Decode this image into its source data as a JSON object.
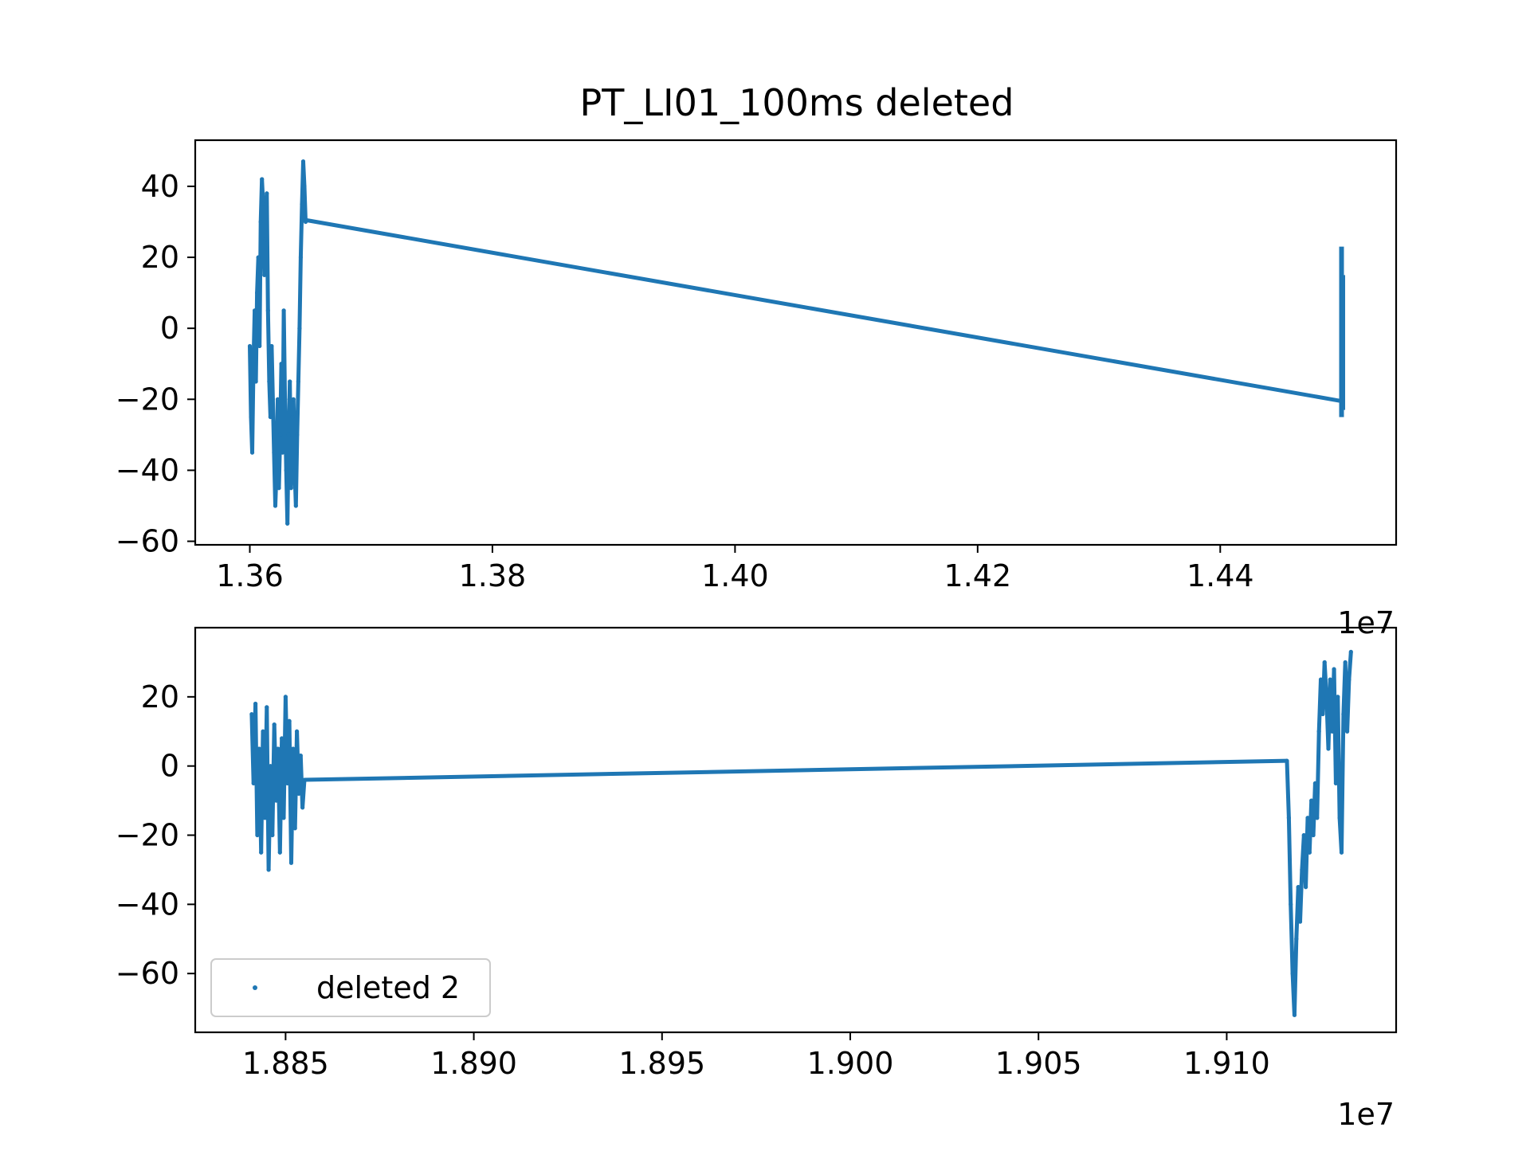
{
  "chart_data": [
    {
      "type": "scatter",
      "title": "PT_LI01_100ms deleted",
      "xlabel": "",
      "ylabel": "",
      "x_offset_label": "1e7",
      "xlim": [
        1.3555,
        1.4545
      ],
      "ylim": [
        -61,
        53
      ],
      "xticks": [
        1.36,
        1.38,
        1.4,
        1.42,
        1.44
      ],
      "xtick_labels": [
        "1.36",
        "1.38",
        "1.40",
        "1.42",
        "1.44"
      ],
      "yticks": [
        -60,
        -40,
        -20,
        0,
        20,
        40
      ],
      "ytick_labels": [
        "−60",
        "−40",
        "−20",
        "0",
        "20",
        "40"
      ],
      "grid": false,
      "marker_color": "#1f77b4",
      "series": [
        {
          "name": "",
          "points": [
            [
              1.36,
              -5
            ],
            [
              1.3601,
              -25
            ],
            [
              1.3602,
              -35
            ],
            [
              1.3603,
              -10
            ],
            [
              1.3604,
              5
            ],
            [
              1.3605,
              -15
            ],
            [
              1.3606,
              10
            ],
            [
              1.3607,
              20
            ],
            [
              1.3608,
              -5
            ],
            [
              1.3609,
              30
            ],
            [
              1.361,
              42
            ],
            [
              1.3611,
              35
            ],
            [
              1.3612,
              15
            ],
            [
              1.3613,
              25
            ],
            [
              1.3614,
              38
            ],
            [
              1.3615,
              5
            ],
            [
              1.3616,
              -15
            ],
            [
              1.3617,
              -25
            ],
            [
              1.3618,
              -5
            ],
            [
              1.3619,
              -20
            ],
            [
              1.362,
              -35
            ],
            [
              1.3621,
              -50
            ],
            [
              1.3622,
              -40
            ],
            [
              1.3623,
              -20
            ],
            [
              1.3624,
              -45
            ],
            [
              1.3625,
              -30
            ],
            [
              1.3626,
              -10
            ],
            [
              1.3627,
              -35
            ],
            [
              1.3628,
              5
            ],
            [
              1.3629,
              -20
            ],
            [
              1.363,
              -40
            ],
            [
              1.3631,
              -55
            ],
            [
              1.3632,
              -30
            ],
            [
              1.3633,
              -15
            ],
            [
              1.3634,
              -45
            ],
            [
              1.3635,
              -25
            ],
            [
              1.3636,
              -20
            ],
            [
              1.3637,
              -40
            ],
            [
              1.3638,
              -50
            ],
            [
              1.3639,
              -30
            ],
            [
              1.364,
              -15
            ],
            [
              1.3641,
              0
            ],
            [
              1.3642,
              20
            ],
            [
              1.3643,
              35
            ],
            [
              1.3644,
              47
            ],
            [
              1.3645,
              40
            ],
            [
              1.3646,
              30
            ]
          ],
          "segments": [
            [
              [
                1.3646,
                30.5
              ],
              [
                1.45,
                -20.5
              ]
            ]
          ],
          "spikes": [
            [
              1.45,
              -25,
              23
            ],
            [
              1.4501,
              -23,
              15
            ]
          ]
        }
      ]
    },
    {
      "type": "scatter",
      "title": "",
      "xlabel": "",
      "ylabel": "",
      "x_offset_label": "1e7",
      "xlim": [
        1.8826,
        1.9145
      ],
      "ylim": [
        -77,
        40
      ],
      "xticks": [
        1.885,
        1.89,
        1.895,
        1.9,
        1.905,
        1.91
      ],
      "xtick_labels": [
        "1.885",
        "1.890",
        "1.895",
        "1.900",
        "1.905",
        "1.910"
      ],
      "yticks": [
        -60,
        -40,
        -20,
        0,
        20
      ],
      "ytick_labels": [
        "−60",
        "−40",
        "−20",
        "0",
        "20"
      ],
      "grid": false,
      "legend_position": "lower-left",
      "marker_color": "#1f77b4",
      "series": [
        {
          "name": "deleted 2",
          "points": [
            [
              1.8841,
              15
            ],
            [
              1.88415,
              -5
            ],
            [
              1.8842,
              18
            ],
            [
              1.88425,
              -20
            ],
            [
              1.8843,
              5
            ],
            [
              1.88435,
              -25
            ],
            [
              1.8844,
              10
            ],
            [
              1.88445,
              -15
            ],
            [
              1.8845,
              17
            ],
            [
              1.88455,
              -30
            ],
            [
              1.8846,
              0
            ],
            [
              1.88465,
              -20
            ],
            [
              1.8847,
              12
            ],
            [
              1.88475,
              -10
            ],
            [
              1.8848,
              5
            ],
            [
              1.88485,
              -25
            ],
            [
              1.8849,
              8
            ],
            [
              1.88495,
              -15
            ],
            [
              1.885,
              20
            ],
            [
              1.88505,
              -5
            ],
            [
              1.8851,
              13
            ],
            [
              1.88515,
              -28
            ],
            [
              1.8852,
              5
            ],
            [
              1.88525,
              -18
            ],
            [
              1.8853,
              10
            ],
            [
              1.88535,
              -8
            ],
            [
              1.8854,
              3
            ],
            [
              1.88545,
              -12
            ],
            [
              1.8855,
              -4
            ]
          ],
          "segments": [
            [
              [
                1.8855,
                -4
              ],
              [
                1.9116,
                1.5
              ]
            ]
          ],
          "points_right": [
            [
              1.9116,
              1.5
            ],
            [
              1.91165,
              -15
            ],
            [
              1.9117,
              -40
            ],
            [
              1.91175,
              -60
            ],
            [
              1.9118,
              -72
            ],
            [
              1.91185,
              -50
            ],
            [
              1.9119,
              -35
            ],
            [
              1.91195,
              -45
            ],
            [
              1.912,
              -30
            ],
            [
              1.91205,
              -20
            ],
            [
              1.9121,
              -35
            ],
            [
              1.91215,
              -15
            ],
            [
              1.9122,
              -25
            ],
            [
              1.91225,
              -10
            ],
            [
              1.9123,
              -20
            ],
            [
              1.91235,
              -5
            ],
            [
              1.9124,
              -15
            ],
            [
              1.91245,
              10
            ],
            [
              1.9125,
              25
            ],
            [
              1.91255,
              15
            ],
            [
              1.9126,
              30
            ],
            [
              1.91265,
              20
            ],
            [
              1.9127,
              5
            ],
            [
              1.91275,
              25
            ],
            [
              1.9128,
              10
            ],
            [
              1.91285,
              28
            ],
            [
              1.9129,
              -5
            ],
            [
              1.91295,
              20
            ],
            [
              1.913,
              -15
            ],
            [
              1.91305,
              -25
            ],
            [
              1.9131,
              15
            ],
            [
              1.91315,
              30
            ],
            [
              1.9132,
              10
            ],
            [
              1.91325,
              25
            ],
            [
              1.9133,
              33
            ]
          ]
        }
      ]
    }
  ]
}
